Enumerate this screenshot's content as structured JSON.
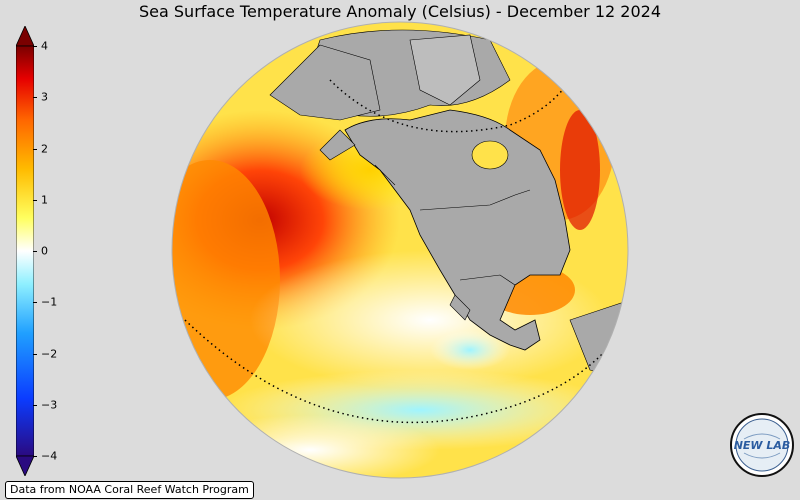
{
  "title": "Sea Surface Temperature Anomaly (Celsius) - December 12 2024",
  "colorbar": {
    "min": -4,
    "max": 4,
    "ticks": [
      "4",
      "3",
      "2",
      "1",
      "0",
      "−1",
      "−2",
      "−3",
      "−4"
    ],
    "colors": [
      "#2a0a80",
      "#0b3cff",
      "#20a0ff",
      "#8ff0ff",
      "#ffffff",
      "#ffff60",
      "#ffbb00",
      "#ff6600",
      "#e60000",
      "#7a0000"
    ]
  },
  "map": {
    "ocean_warm": "#ff9d00",
    "land": "#a9a9a9",
    "dotted_lines": [
      "arctic-circle",
      "equator"
    ]
  },
  "credit": "Data from NOAA Coral Reef Watch Program",
  "logo": {
    "text": "NEW LAB"
  }
}
